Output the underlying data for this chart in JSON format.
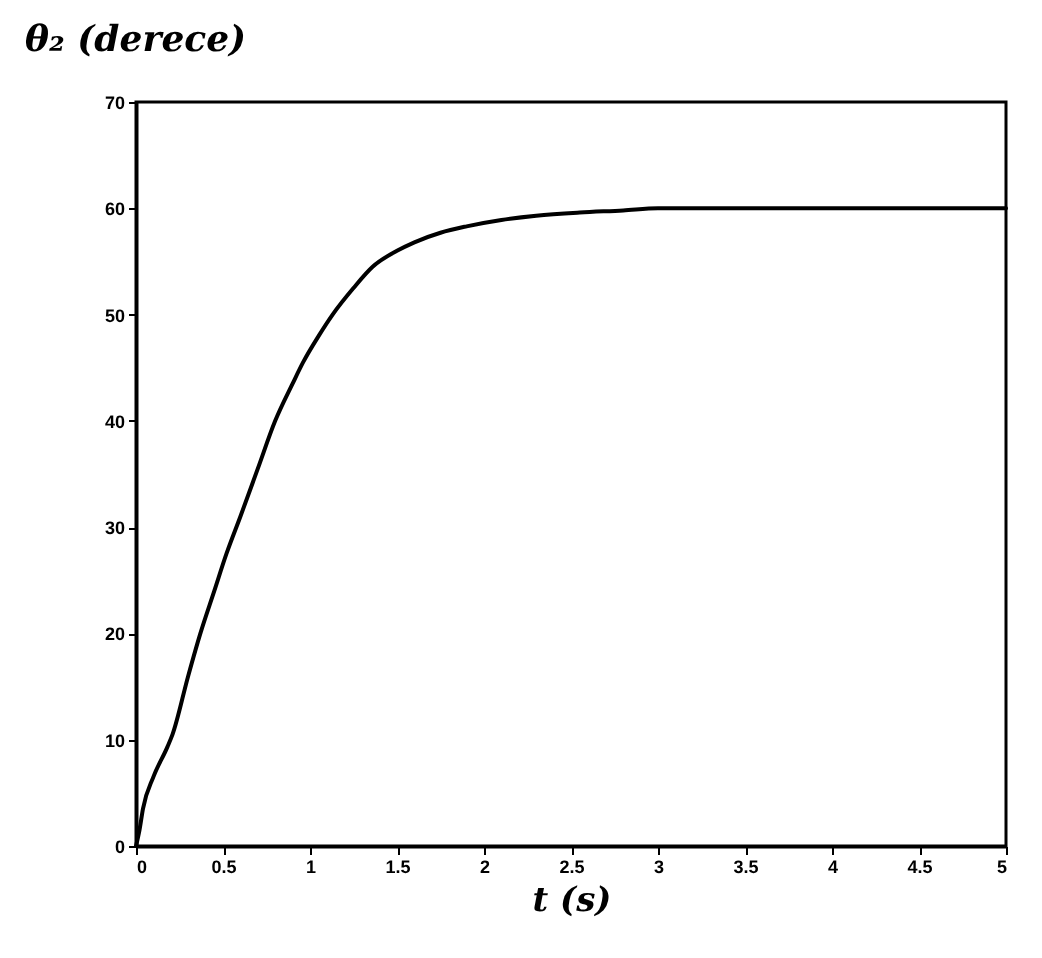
{
  "chart_data": {
    "type": "line",
    "xlabel": "t (s)",
    "ylabel": "θ₂ (derece)",
    "x": [
      0,
      0.02,
      0.04,
      0.1,
      0.18,
      0.21,
      0.3,
      0.37,
      0.45,
      0.52,
      0.6,
      0.7,
      0.8,
      0.9,
      0.96,
      1.05,
      1.13,
      1.25,
      1.36,
      1.5,
      1.6,
      1.75,
      1.9,
      2.1,
      2.3,
      2.55,
      2.8,
      3,
      3.5,
      4,
      4.5,
      5
    ],
    "series": [
      {
        "color": "#000000",
        "values": [
          0,
          1.5,
          3.5,
          6.5,
          9.3,
          10.5,
          16,
          20,
          24,
          27.5,
          31,
          35.5,
          40,
          43.5,
          45.5,
          48,
          50,
          52.5,
          54.5,
          56,
          56.8,
          57.7,
          58.3,
          58.9,
          59.3,
          59.6,
          59.8,
          60,
          60,
          60,
          60,
          60
        ]
      }
    ],
    "xlim": [
      0,
      5
    ],
    "ylim": [
      0,
      70
    ],
    "xticks": [
      0,
      0.5,
      1,
      1.5,
      2,
      2.5,
      3,
      3.5,
      4,
      4.5,
      5
    ],
    "yticks": [
      0,
      10,
      20,
      30,
      40,
      50,
      60,
      70
    ],
    "line_style": "solid"
  }
}
